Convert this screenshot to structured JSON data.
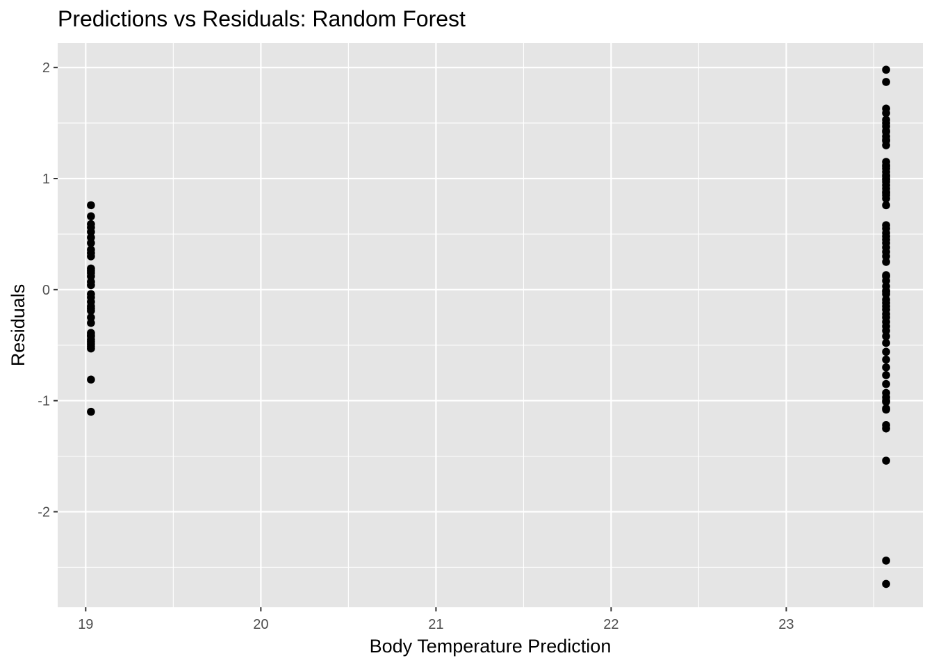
{
  "chart_data": {
    "type": "scatter",
    "title": "Predictions vs Residuals: Random Forest",
    "xlabel": "Body Temperature Prediction",
    "ylabel": "Residuals",
    "xlim": [
      18.84,
      23.78
    ],
    "ylim": [
      -2.86,
      2.22
    ],
    "x_ticks": [
      19,
      20,
      21,
      22,
      23
    ],
    "x_tick_labels": [
      "19",
      "20",
      "21",
      "22",
      "23"
    ],
    "y_ticks": [
      -2,
      -1,
      0,
      1,
      2
    ],
    "y_tick_labels": [
      "-2",
      "-1",
      "0",
      "1",
      "2"
    ],
    "x_minor": [
      19.5,
      20.5,
      21.5,
      22.5,
      23.5
    ],
    "y_minor": [
      -2.5,
      -1.5,
      -0.5,
      0.5,
      1.5
    ],
    "grid": true,
    "legend": "none",
    "colors": {
      "panel": "#e5e5e5",
      "grid": "#ffffff",
      "point": "#000000",
      "tick_text": "#4d4d4d"
    },
    "series": [
      {
        "x": [
          19.03,
          19.03,
          19.03,
          19.03,
          19.03,
          19.03,
          19.03,
          19.03,
          19.03,
          19.03,
          19.03,
          19.03,
          19.03,
          19.03,
          19.03,
          19.03,
          19.03,
          19.03,
          19.03,
          19.03,
          19.03,
          19.03,
          19.03,
          19.03,
          19.03,
          19.03,
          19.03,
          19.03,
          19.03,
          19.03,
          19.03,
          19.03,
          19.03,
          19.03
        ],
        "y": [
          0.76,
          0.66,
          0.59,
          0.56,
          0.52,
          0.47,
          0.42,
          0.36,
          0.33,
          0.3,
          0.19,
          0.17,
          0.15,
          0.12,
          0.07,
          0.04,
          -0.04,
          -0.07,
          -0.11,
          -0.15,
          -0.17,
          -0.19,
          -0.25,
          -0.3,
          -0.39,
          -0.41,
          -0.42,
          -0.45,
          -0.47,
          -0.49,
          -0.51,
          -0.53,
          -0.81,
          -1.1
        ]
      },
      {
        "x": [
          23.57,
          23.57,
          23.57,
          23.57,
          23.57,
          23.57,
          23.57,
          23.57,
          23.57,
          23.57,
          23.57,
          23.57,
          23.57,
          23.57,
          23.57,
          23.57,
          23.57,
          23.57,
          23.57,
          23.57,
          23.57,
          23.57,
          23.57,
          23.57,
          23.57,
          23.57,
          23.57,
          23.57,
          23.57,
          23.57,
          23.57,
          23.57,
          23.57,
          23.57,
          23.57,
          23.57,
          23.57,
          23.57,
          23.57,
          23.57,
          23.57,
          23.57,
          23.57,
          23.57,
          23.57,
          23.57,
          23.57,
          23.57,
          23.57,
          23.57,
          23.57,
          23.57,
          23.57,
          23.57,
          23.57,
          23.57,
          23.57,
          23.57,
          23.57,
          23.57,
          23.57,
          23.57,
          23.57,
          23.57,
          23.57,
          23.57,
          23.57,
          23.57,
          23.57,
          23.57,
          23.57,
          23.57,
          23.57,
          23.57
        ],
        "y": [
          1.98,
          1.87,
          1.63,
          1.59,
          1.53,
          1.5,
          1.47,
          1.43,
          1.38,
          1.34,
          1.3,
          1.15,
          1.12,
          1.09,
          1.06,
          1.03,
          1.0,
          0.97,
          0.94,
          0.91,
          0.88,
          0.85,
          0.82,
          0.76,
          0.58,
          0.55,
          0.48,
          0.45,
          0.38,
          0.34,
          0.3,
          0.25,
          0.13,
          0.08,
          0.03,
          -0.01,
          -0.04,
          -0.09,
          -0.12,
          -0.15,
          -0.18,
          -0.22,
          -0.25,
          -0.33,
          -0.42,
          -0.48,
          -0.56,
          -0.7,
          -0.77,
          -0.85,
          -0.93,
          -0.97,
          -1.01,
          -1.07,
          -1.08,
          -1.22,
          -1.25,
          -1.54,
          -2.44,
          -2.65,
          -0.02,
          0.12,
          0.51,
          1.02,
          1.42,
          -0.63,
          -0.29,
          0.99,
          1.11,
          -0.37,
          0.42,
          0.87,
          -1.0,
          1.35
        ]
      }
    ]
  }
}
